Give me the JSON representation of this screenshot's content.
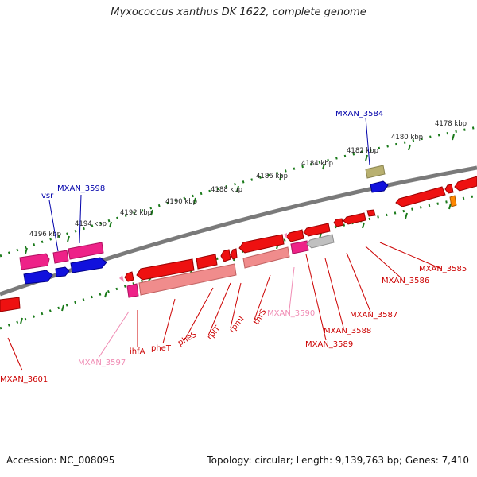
{
  "title": "Myxococcus xanthus DK 1622, complete genome",
  "footer": {
    "accession": "Accession: NC_008095",
    "summary": "Topology: circular; Length: 9,139,763 bp; Genes: 7,410"
  },
  "colors": {
    "background": "#ffffff",
    "backbone": "#808080",
    "ruler_ticks": "#1a7a1a",
    "gene_red": "#ee1111",
    "gene_pink": "#f0a0a0",
    "gene_magenta": "#ee2288",
    "gene_blue": "#1111dd",
    "gene_grey": "#c0c0c0",
    "gene_olive": "#b8b070",
    "gene_orange": "#ff8800",
    "label_red": "#cc0000",
    "label_pink": "#f08cb4",
    "label_blue": "#0000aa"
  },
  "ruler": {
    "outer_ticks": [
      "4178 kbp",
      "4180 kbp",
      "4182 kbp",
      "4184 kbp",
      "4186 kbp",
      "4188 kbp",
      "4190 kbp",
      "4192 kbp",
      "4194 kbp",
      "4196 kbp"
    ]
  },
  "gene_labels": {
    "outer": [
      "MXAN_3584",
      "MXAN_3598",
      "vsr"
    ],
    "inner": [
      "MXAN_3585",
      "MXAN_3586",
      "MXAN_3587",
      "MXAN_3588",
      "MXAN_3589",
      "MXAN_3590",
      "thrS",
      "rpmI",
      "rplT",
      "pheS",
      "pheT",
      "ihfA",
      "MXAN_3597",
      "MXAN_3601"
    ]
  }
}
